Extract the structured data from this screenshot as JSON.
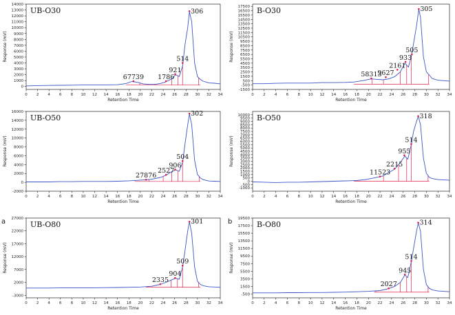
{
  "chart_data": [
    {
      "type": "line",
      "letter": "",
      "title": "UB-O30",
      "xlabel": "Retention Time",
      "ylabel": "Response (mV)",
      "xlim": [
        0,
        34
      ],
      "ylim": [
        -500,
        14000
      ],
      "xticks": [
        0,
        2,
        4,
        6,
        8,
        10,
        12,
        14,
        16,
        18,
        20,
        22,
        24,
        26,
        28,
        30,
        32,
        34
      ],
      "yticks": [
        0,
        1000,
        2000,
        3000,
        4000,
        5000,
        6000,
        7000,
        8000,
        9000,
        10000,
        11000,
        12000,
        13000,
        14000
      ],
      "points": [
        [
          0,
          100
        ],
        [
          2,
          150
        ],
        [
          4,
          180
        ],
        [
          6,
          200
        ],
        [
          8,
          220
        ],
        [
          10,
          250
        ],
        [
          12,
          250
        ],
        [
          14,
          270
        ],
        [
          16,
          300
        ],
        [
          17.5,
          500
        ],
        [
          18.5,
          850
        ],
        [
          19.5,
          700
        ],
        [
          20.5,
          450
        ],
        [
          21.5,
          350
        ],
        [
          22.5,
          350
        ],
        [
          23.5,
          500
        ],
        [
          24.5,
          800
        ],
        [
          25.5,
          1300
        ],
        [
          26.2,
          2000
        ],
        [
          26.8,
          1700
        ],
        [
          27.4,
          3500
        ],
        [
          27.8,
          7000
        ],
        [
          28.3,
          10000
        ],
        [
          28.6,
          12700
        ],
        [
          29,
          11000
        ],
        [
          29.5,
          4000
        ],
        [
          30,
          1700
        ],
        [
          30.5,
          1200
        ],
        [
          31,
          900
        ],
        [
          32,
          600
        ],
        [
          33,
          550
        ],
        [
          34,
          450
        ]
      ],
      "peaks": [
        {
          "x": 18.8,
          "y": 900,
          "label": "67739"
        },
        {
          "x": 24.5,
          "y": 900,
          "label": "1786"
        },
        {
          "x": 26.1,
          "y": 2100,
          "label": "921"
        },
        {
          "x": 27.4,
          "y": 4000,
          "label": "514"
        },
        {
          "x": 28.6,
          "y": 12800,
          "label": "306"
        }
      ],
      "integration": {
        "baseline": [
          [
            17.5,
            250
          ],
          [
            30.5,
            250
          ]
        ],
        "dividers": [
          19.9,
          22.5,
          25.5,
          26.6,
          27.4,
          30.2
        ]
      }
    },
    {
      "type": "line",
      "letter": "",
      "title": "B-O30",
      "xlabel": "Retention Time",
      "ylabel": "Response (mV)",
      "xlim": [
        0,
        34
      ],
      "ylim": [
        -1500,
        18000
      ],
      "xticks": [
        0,
        2,
        4,
        6,
        8,
        10,
        12,
        14,
        16,
        18,
        20,
        22,
        24,
        26,
        28,
        30,
        32,
        34
      ],
      "yticks": [
        -1500,
        -500,
        500,
        1500,
        2500,
        3500,
        4500,
        5500,
        6500,
        7500,
        8500,
        9500,
        10500,
        11500,
        12500,
        13500,
        14500,
        15500,
        16500,
        17500
      ],
      "points": [
        [
          0,
          -200
        ],
        [
          2,
          -200
        ],
        [
          4,
          -100
        ],
        [
          6,
          -50
        ],
        [
          8,
          -50
        ],
        [
          10,
          -50
        ],
        [
          12,
          50
        ],
        [
          14,
          50
        ],
        [
          16,
          100
        ],
        [
          17.5,
          200
        ],
        [
          19,
          500
        ],
        [
          20.5,
          900
        ],
        [
          21.5,
          800
        ],
        [
          22.5,
          700
        ],
        [
          23.5,
          900
        ],
        [
          24.5,
          1400
        ],
        [
          25.5,
          2500
        ],
        [
          26.3,
          4500
        ],
        [
          26.9,
          3600
        ],
        [
          27.4,
          6000
        ],
        [
          27.8,
          9000
        ],
        [
          28.3,
          13000
        ],
        [
          28.7,
          16800
        ],
        [
          29,
          15000
        ],
        [
          29.5,
          6000
        ],
        [
          30,
          2500
        ],
        [
          30.5,
          1800
        ],
        [
          31,
          1000
        ],
        [
          32,
          600
        ],
        [
          33,
          500
        ],
        [
          34,
          400
        ]
      ],
      "peaks": [
        {
          "x": 20.5,
          "y": 1000,
          "label": "58313"
        },
        {
          "x": 23,
          "y": 1300,
          "label": "9627"
        },
        {
          "x": 25,
          "y": 3000,
          "label": "2161"
        },
        {
          "x": 26.4,
          "y": 4800,
          "label": "933"
        },
        {
          "x": 27.5,
          "y": 6500,
          "label": "505"
        },
        {
          "x": 28.7,
          "y": 16900,
          "label": "305"
        }
      ],
      "integration": {
        "baseline": [
          [
            17.5,
            -300
          ],
          [
            30.5,
            -300
          ]
        ],
        "dividers": [
          20.6,
          22.6,
          25.5,
          26.6,
          27.4,
          30.4
        ]
      }
    },
    {
      "type": "line",
      "letter": "",
      "title": "UB-O50",
      "xlabel": "Retention Time",
      "ylabel": "Response (mV)",
      "xlim": [
        0,
        34
      ],
      "ylim": [
        -2000,
        16000
      ],
      "xticks": [
        0,
        2,
        4,
        6,
        8,
        10,
        12,
        14,
        16,
        18,
        20,
        22,
        24,
        26,
        28,
        30,
        32,
        34
      ],
      "yticks": [
        -2000,
        0,
        2000,
        4000,
        6000,
        8000,
        10000,
        12000,
        14000,
        16000
      ],
      "points": [
        [
          0,
          100
        ],
        [
          2,
          100
        ],
        [
          4,
          100
        ],
        [
          6,
          150
        ],
        [
          8,
          150
        ],
        [
          10,
          200
        ],
        [
          12,
          200
        ],
        [
          14,
          200
        ],
        [
          16,
          250
        ],
        [
          18,
          350
        ],
        [
          20,
          500
        ],
        [
          22,
          700
        ],
        [
          23.5,
          1100
        ],
        [
          24.5,
          1600
        ],
        [
          25.5,
          2400
        ],
        [
          26.2,
          2800
        ],
        [
          26.8,
          2500
        ],
        [
          27.4,
          4500
        ],
        [
          27.8,
          8500
        ],
        [
          28.3,
          13000
        ],
        [
          28.6,
          15400
        ],
        [
          29,
          13000
        ],
        [
          29.5,
          5000
        ],
        [
          30,
          1800
        ],
        [
          30.5,
          1000
        ],
        [
          31,
          600
        ],
        [
          32,
          300
        ],
        [
          33,
          250
        ],
        [
          34,
          200
        ]
      ],
      "peaks": [
        {
          "x": 21,
          "y": 600,
          "label": "27876"
        },
        {
          "x": 24.5,
          "y": 1700,
          "label": "2527"
        },
        {
          "x": 26.1,
          "y": 2900,
          "label": "906"
        },
        {
          "x": 27.4,
          "y": 4800,
          "label": "504"
        },
        {
          "x": 28.6,
          "y": 15500,
          "label": "302"
        }
      ],
      "integration": {
        "baseline": [
          [
            19,
            200
          ],
          [
            30.5,
            200
          ]
        ],
        "dividers": [
          21.5,
          24,
          25.5,
          26.6,
          27.4,
          30.3
        ]
      }
    },
    {
      "type": "line",
      "letter": "",
      "title": "B-O50",
      "xlabel": "Retention Time",
      "ylabel": "Response (mV)",
      "xlim": [
        0,
        34
      ],
      "ylim": [
        -1500,
        10500
      ],
      "xticks": [
        0,
        2,
        4,
        6,
        8,
        10,
        12,
        14,
        16,
        18,
        20,
        22,
        24,
        26,
        28,
        30,
        32,
        34
      ],
      "yticks": [
        -1000,
        -500,
        0,
        500,
        1000,
        1500,
        2000,
        2500,
        3000,
        3500,
        4000,
        4500,
        5000,
        5500,
        6000,
        6500,
        7000,
        7500,
        8000,
        8500,
        9000,
        9500,
        10000
      ],
      "points": [
        [
          0,
          -100
        ],
        [
          2,
          -150
        ],
        [
          4,
          -200
        ],
        [
          6,
          -150
        ],
        [
          8,
          -150
        ],
        [
          10,
          -100
        ],
        [
          12,
          -50
        ],
        [
          14,
          0
        ],
        [
          16,
          50
        ],
        [
          18,
          100
        ],
        [
          19.5,
          250
        ],
        [
          21,
          500
        ],
        [
          22.5,
          800
        ],
        [
          23.5,
          1300
        ],
        [
          24.5,
          1800
        ],
        [
          25.5,
          2800
        ],
        [
          26.3,
          3800
        ],
        [
          26.8,
          3300
        ],
        [
          27.4,
          5500
        ],
        [
          27.8,
          7500
        ],
        [
          28.3,
          9000
        ],
        [
          28.6,
          9800
        ],
        [
          29,
          8500
        ],
        [
          29.5,
          3500
        ],
        [
          30,
          1200
        ],
        [
          30.5,
          600
        ],
        [
          31,
          400
        ],
        [
          32,
          250
        ],
        [
          33,
          200
        ],
        [
          34,
          150
        ]
      ],
      "peaks": [
        {
          "x": 22,
          "y": 700,
          "label": "11523"
        },
        {
          "x": 24.5,
          "y": 1900,
          "label": "2215"
        },
        {
          "x": 26.2,
          "y": 3900,
          "label": "955"
        },
        {
          "x": 27.4,
          "y": 5600,
          "label": "514"
        },
        {
          "x": 28.6,
          "y": 9800,
          "label": "318"
        }
      ],
      "integration": {
        "baseline": [
          [
            17.5,
            0
          ],
          [
            30.5,
            0
          ]
        ],
        "dividers": [
          22.6,
          25.2,
          26.6,
          27.4,
          30.3
        ]
      }
    },
    {
      "type": "line",
      "letter": "a",
      "title": "UB-O80",
      "xlabel": "Retention Time",
      "ylabel": "Response (mV)",
      "xlim": [
        0,
        34
      ],
      "ylim": [
        -4000,
        27000
      ],
      "xticks": [
        0,
        2,
        4,
        6,
        8,
        10,
        12,
        14,
        16,
        18,
        20,
        22,
        24,
        26,
        28,
        30,
        32,
        34
      ],
      "yticks": [
        -3000,
        2000,
        7000,
        12000,
        17000,
        22000,
        27000
      ],
      "points": [
        [
          0,
          -200
        ],
        [
          2,
          -200
        ],
        [
          4,
          -200
        ],
        [
          6,
          -150
        ],
        [
          8,
          -150
        ],
        [
          10,
          -100
        ],
        [
          12,
          -100
        ],
        [
          14,
          -50
        ],
        [
          16,
          0
        ],
        [
          18,
          100
        ],
        [
          20,
          200
        ],
        [
          22,
          500
        ],
        [
          23.5,
          1200
        ],
        [
          24.5,
          2000
        ],
        [
          25.5,
          3000
        ],
        [
          26.2,
          3600
        ],
        [
          26.8,
          3200
        ],
        [
          27.4,
          8000
        ],
        [
          27.8,
          14000
        ],
        [
          28.3,
          22000
        ],
        [
          28.6,
          25500
        ],
        [
          29,
          21000
        ],
        [
          29.5,
          8000
        ],
        [
          30,
          2500
        ],
        [
          30.5,
          1200
        ],
        [
          31,
          700
        ],
        [
          32,
          300
        ],
        [
          33,
          200
        ],
        [
          34,
          100
        ]
      ],
      "peaks": [
        {
          "x": 23.5,
          "y": 1300,
          "label": "2335"
        },
        {
          "x": 26.1,
          "y": 3700,
          "label": "904"
        },
        {
          "x": 27.4,
          "y": 8500,
          "label": "509"
        },
        {
          "x": 28.6,
          "y": 25600,
          "label": "301"
        }
      ],
      "integration": {
        "baseline": [
          [
            21,
            100
          ],
          [
            30.5,
            100
          ]
        ],
        "dividers": [
          21.3,
          25.4,
          26.5,
          27.4,
          30.2
        ]
      }
    },
    {
      "type": "line",
      "letter": "b",
      "title": "B-O80",
      "xlabel": "Retention Time",
      "ylabel": "Response (mV)",
      "xlim": [
        0,
        34
      ],
      "ylim": [
        -1500,
        19500
      ],
      "xticks": [
        0,
        2,
        4,
        6,
        8,
        10,
        12,
        14,
        16,
        18,
        20,
        22,
        24,
        26,
        28,
        30,
        32,
        34
      ],
      "yticks": [
        -500,
        1500,
        3500,
        5500,
        7500,
        9500,
        11500,
        13500,
        15500,
        17500,
        19500
      ],
      "points": [
        [
          0,
          -200
        ],
        [
          2,
          -200
        ],
        [
          4,
          -200
        ],
        [
          6,
          -150
        ],
        [
          8,
          -150
        ],
        [
          10,
          -100
        ],
        [
          12,
          -100
        ],
        [
          14,
          -50
        ],
        [
          16,
          0
        ],
        [
          18,
          100
        ],
        [
          20,
          200
        ],
        [
          22,
          400
        ],
        [
          23.5,
          900
        ],
        [
          24.5,
          1500
        ],
        [
          25.5,
          2500
        ],
        [
          26.3,
          4500
        ],
        [
          26.8,
          3800
        ],
        [
          27.4,
          8000
        ],
        [
          27.8,
          11500
        ],
        [
          28.3,
          16000
        ],
        [
          28.6,
          18200
        ],
        [
          29,
          16000
        ],
        [
          29.5,
          6000
        ],
        [
          30,
          2000
        ],
        [
          30.5,
          1000
        ],
        [
          31,
          600
        ],
        [
          32,
          300
        ],
        [
          33,
          200
        ],
        [
          34,
          100
        ]
      ],
      "peaks": [
        {
          "x": 23.5,
          "y": 1000,
          "label": "2027"
        },
        {
          "x": 26.3,
          "y": 4600,
          "label": "945"
        },
        {
          "x": 27.4,
          "y": 8200,
          "label": "514"
        },
        {
          "x": 28.6,
          "y": 18300,
          "label": "314"
        }
      ],
      "integration": {
        "baseline": [
          [
            21,
            0
          ],
          [
            30.5,
            0
          ]
        ],
        "dividers": [
          21.2,
          25.5,
          26.6,
          27.4,
          30.3
        ]
      }
    }
  ]
}
